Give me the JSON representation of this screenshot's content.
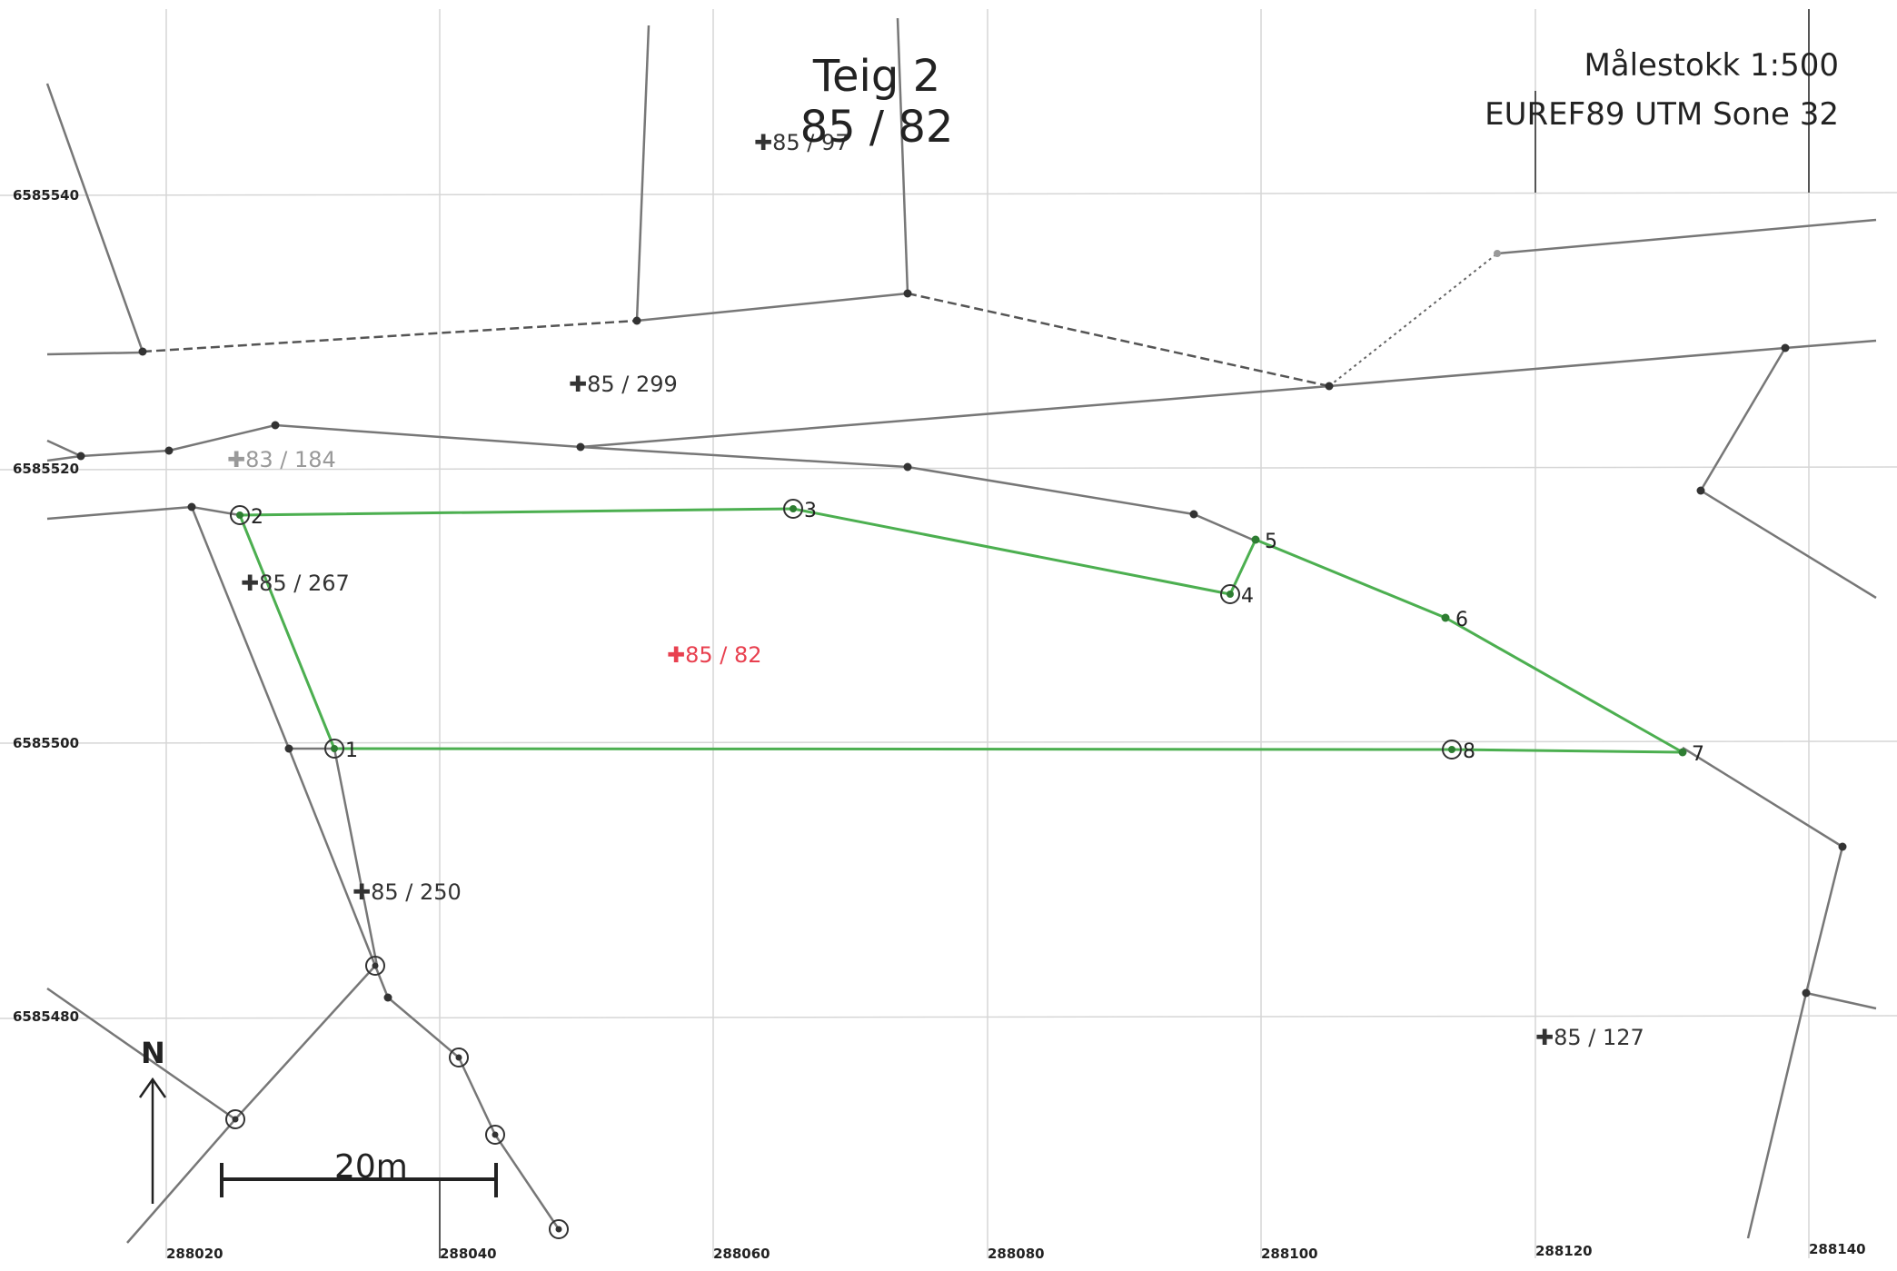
{
  "header": {
    "title_line1": "Teig 2",
    "title_line2": "85 / 82",
    "scale_text": "Målestokk 1:500",
    "crs_text": "EUREF89 UTM Sone 32"
  },
  "grid": {
    "y_labels": [
      "6585540",
      "6585520",
      "6585500",
      "6585480"
    ],
    "x_labels": [
      "288020",
      "288040",
      "288060",
      "288080",
      "288100",
      "288120",
      "288140"
    ]
  },
  "parcels": [
    {
      "label": "85 / 97"
    },
    {
      "label": "85 / 299"
    },
    {
      "label": "83 / 184"
    },
    {
      "label": "85 / 267"
    },
    {
      "label": "85 / 82"
    },
    {
      "label": "85 / 250"
    },
    {
      "label": "85 / 127"
    }
  ],
  "boundary_points": [
    {
      "label": "1"
    },
    {
      "label": "2"
    },
    {
      "label": "3"
    },
    {
      "label": "4"
    },
    {
      "label": "5"
    },
    {
      "label": "6"
    },
    {
      "label": "7"
    },
    {
      "label": "8"
    }
  ],
  "north_arrow": {
    "label": "N"
  },
  "scale_bar": {
    "label": "20m"
  },
  "colors": {
    "boundary": "#4caf50",
    "neighbor_lines": "#777777",
    "grid": "#d0d0d0",
    "highlight_parcel": "#e8404f"
  }
}
